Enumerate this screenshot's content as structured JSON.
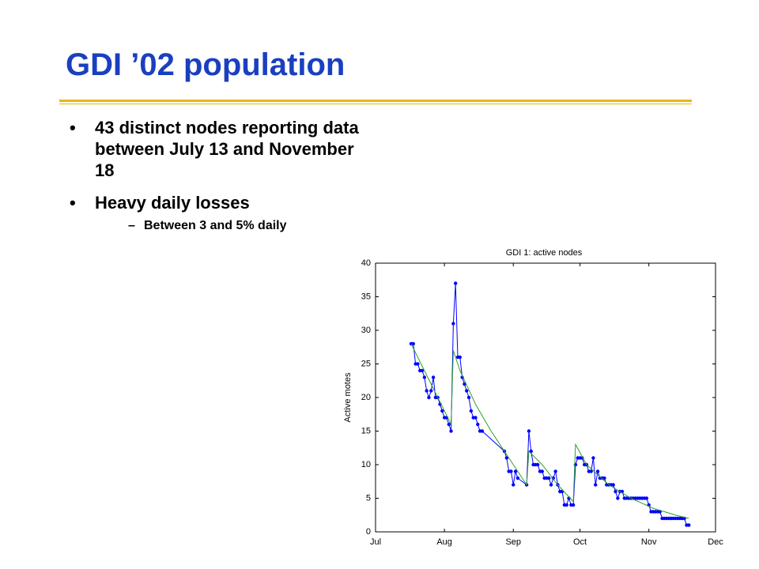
{
  "slide": {
    "title": "GDI ’02 population",
    "bullets": [
      {
        "text": "43 distinct nodes reporting data between July 13 and November 18"
      },
      {
        "text": "Heavy daily losses",
        "sub": [
          "Between 3 and 5% daily"
        ]
      }
    ]
  },
  "chart_data": {
    "type": "line",
    "title": "GDI 1: active nodes",
    "y_label": "Active motes",
    "xlim": [
      0,
      153
    ],
    "xticks": [
      {
        "value": 0,
        "label": "Jul"
      },
      {
        "value": 31,
        "label": "Aug"
      },
      {
        "value": 62,
        "label": "Sep"
      },
      {
        "value": 92,
        "label": "Oct"
      },
      {
        "value": 123,
        "label": "Nov"
      },
      {
        "value": 153,
        "label": "Dec"
      }
    ],
    "ylim": [
      0,
      40
    ],
    "yticks": [
      0,
      5,
      10,
      15,
      20,
      25,
      30,
      35,
      40
    ],
    "series": [
      {
        "color": "#0000ff",
        "markers": true,
        "x": [
          16,
          17,
          18,
          19,
          20,
          21,
          22,
          23,
          24,
          25,
          26,
          27,
          28,
          29,
          30,
          31,
          32,
          33,
          34,
          35,
          36,
          37,
          38,
          39,
          40,
          41,
          42,
          43,
          44,
          45,
          46,
          47,
          48,
          58,
          59,
          60,
          61,
          62,
          63,
          64,
          68,
          69,
          70,
          71,
          72,
          73,
          74,
          75,
          76,
          77,
          78,
          79,
          80,
          81,
          82,
          83,
          84,
          85,
          86,
          87,
          88,
          89,
          90,
          91,
          92,
          93,
          94,
          95,
          96,
          97,
          98,
          99,
          100,
          101,
          102,
          103,
          104,
          105,
          106,
          107,
          108,
          109,
          110,
          111,
          112,
          113,
          114,
          115,
          116,
          117,
          118,
          119,
          120,
          121,
          122,
          123,
          124,
          125,
          126,
          127,
          128,
          129,
          130,
          131,
          132,
          133,
          134,
          135,
          136,
          137,
          138,
          139,
          140,
          141
        ],
        "values": [
          28,
          28,
          25,
          25,
          24,
          24,
          23,
          21,
          20,
          21,
          23,
          20,
          20,
          19,
          18,
          17,
          17,
          16,
          15,
          31,
          37,
          26,
          26,
          23,
          22,
          21,
          20,
          18,
          17,
          17,
          16,
          15,
          15,
          12,
          11,
          9,
          9,
          7,
          9,
          8,
          7,
          15,
          12,
          10,
          10,
          10,
          9,
          9,
          8,
          8,
          8,
          7,
          8,
          9,
          7,
          6,
          6,
          4,
          4,
          5,
          4,
          4,
          10,
          11,
          11,
          11,
          10,
          10,
          9,
          9,
          11,
          7,
          9,
          8,
          8,
          8,
          7,
          7,
          7,
          7,
          6,
          5,
          6,
          6,
          5,
          5,
          5,
          5,
          5,
          5,
          5,
          5,
          5,
          5,
          5,
          4,
          3,
          3,
          3,
          3,
          3,
          2,
          2,
          2,
          2,
          2,
          2,
          2,
          2,
          2,
          2,
          2,
          1,
          1
        ]
      },
      {
        "color": "#2ca02c",
        "markers": false,
        "x": [
          16,
          34,
          35,
          38,
          45,
          52,
          60,
          68,
          69,
          75,
          82,
          89,
          90,
          95,
          105,
          115,
          125,
          135,
          141
        ],
        "values": [
          28,
          16,
          27,
          24,
          19,
          15,
          11,
          7,
          12,
          10,
          7,
          4.5,
          13,
          10,
          7,
          5,
          3.5,
          2.5,
          2
        ]
      }
    ]
  }
}
